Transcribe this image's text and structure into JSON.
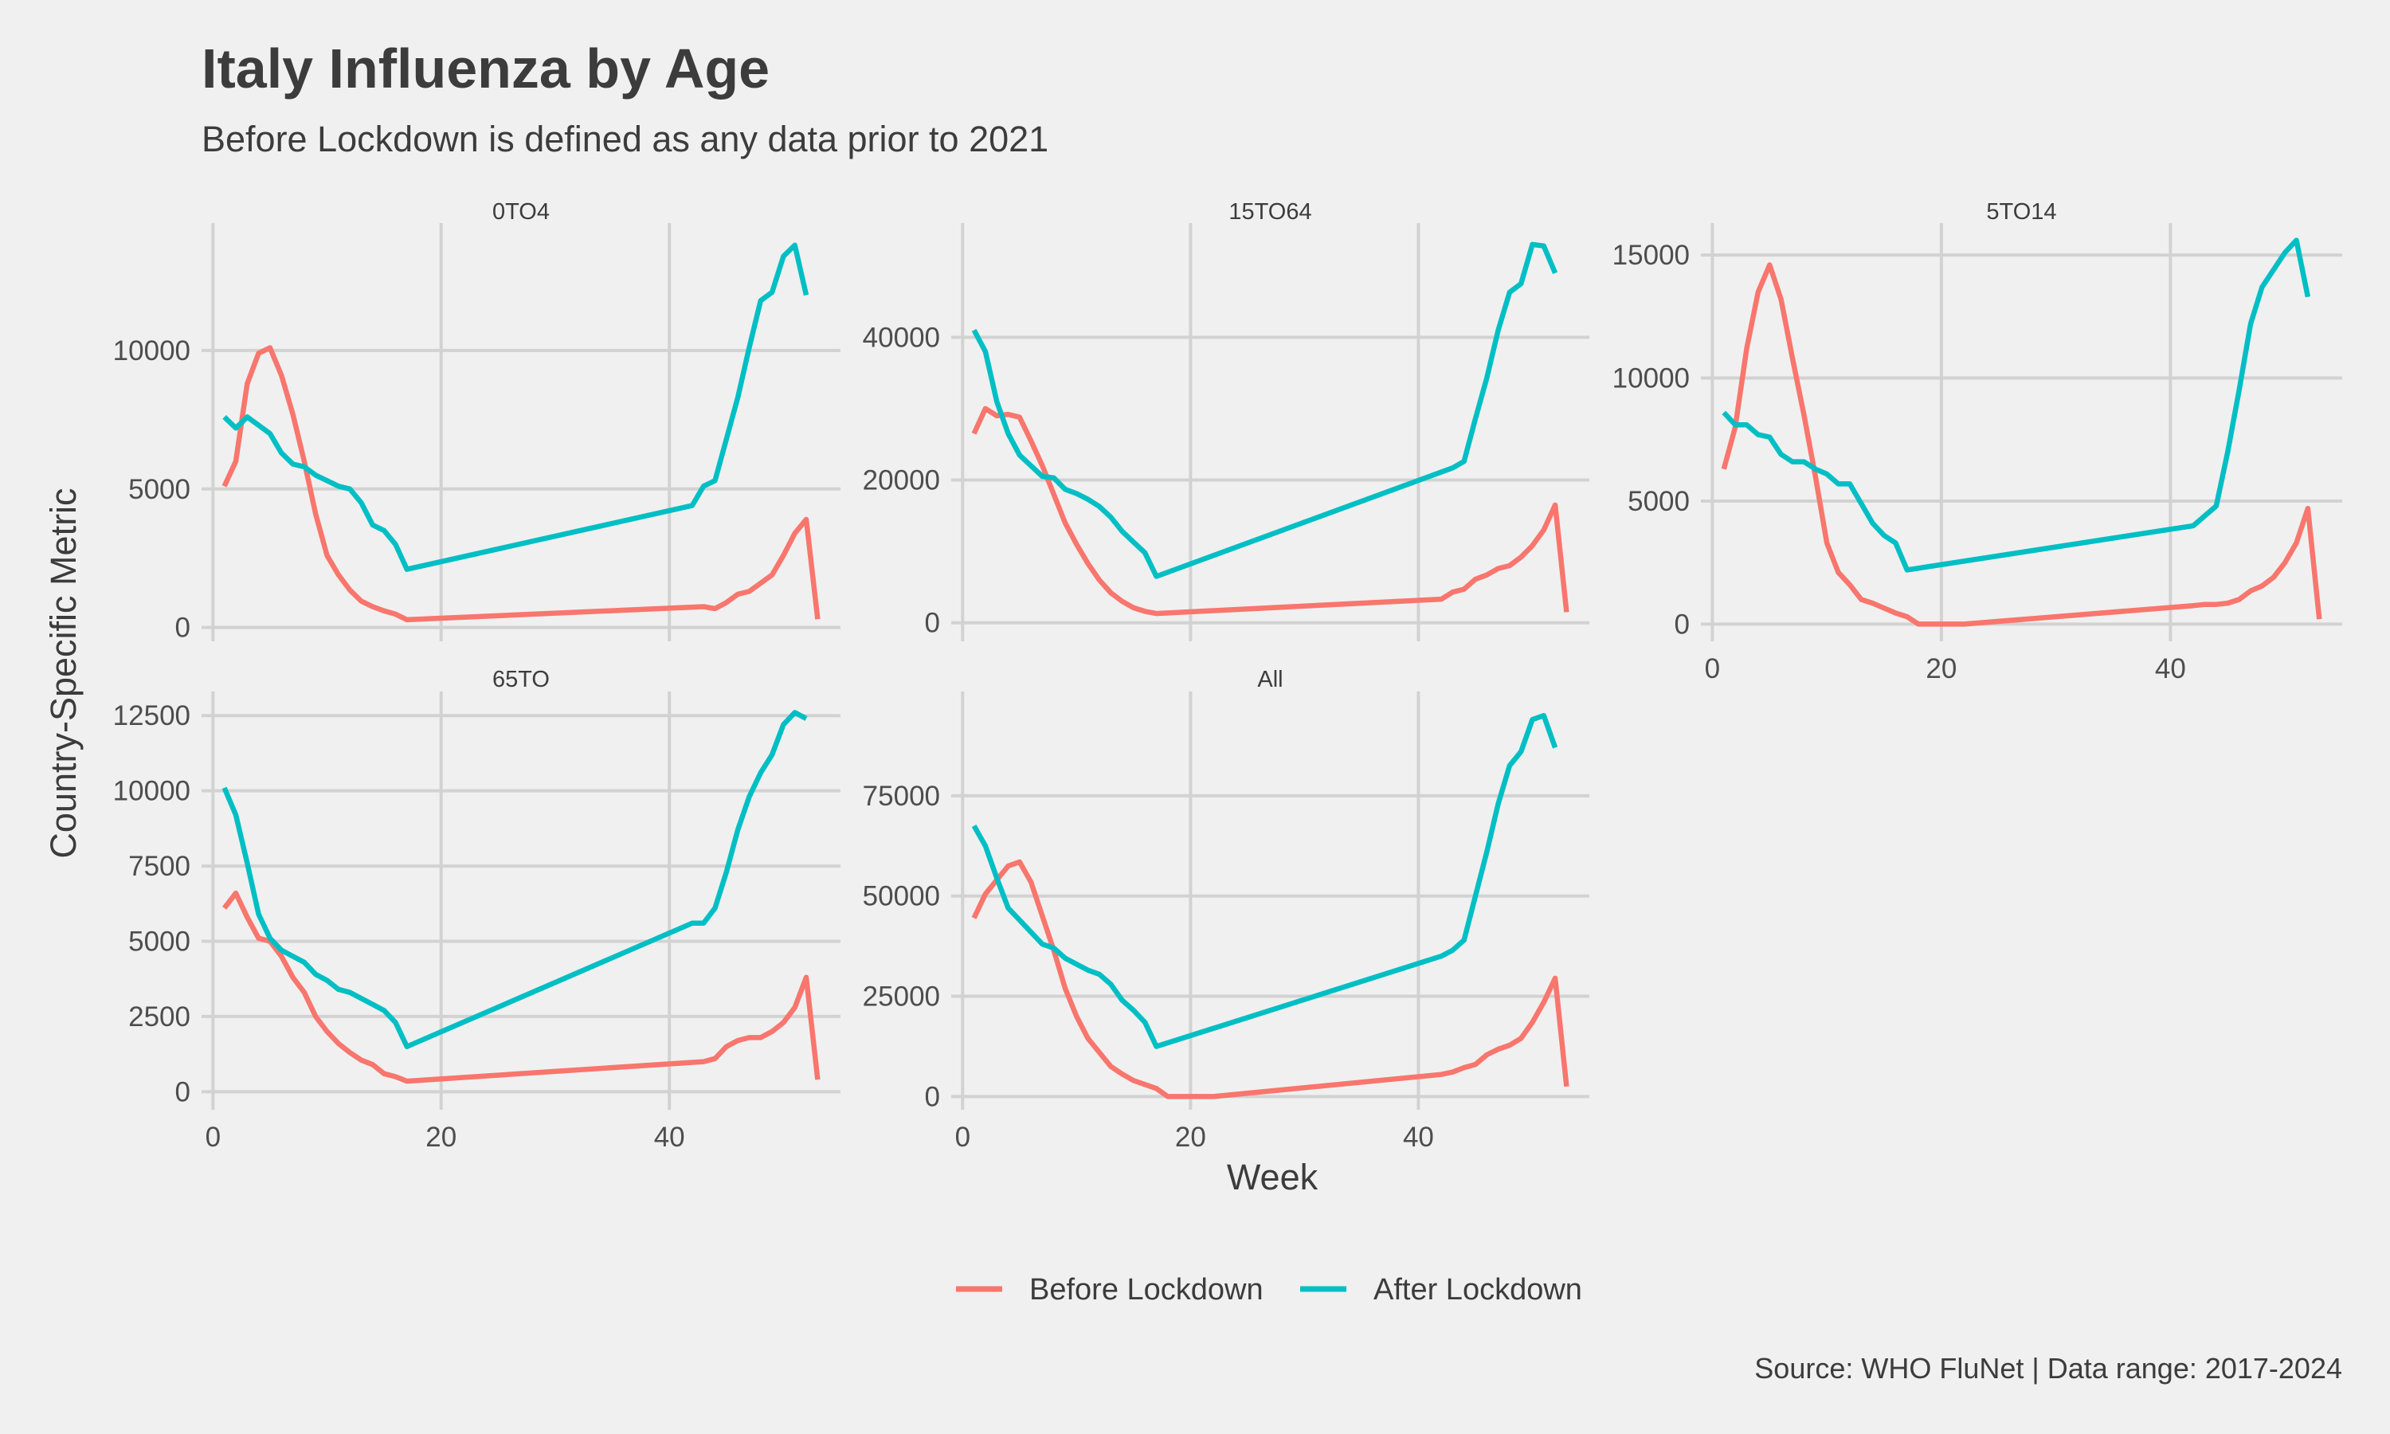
{
  "title": "Italy Influenza by Age",
  "subtitle": "Before Lockdown is defined as any data prior to 2021",
  "caption": "Source: WHO FluNet | Data range: 2017-2024",
  "xlabel": "Week",
  "ylabel": "Country-Specific Metric",
  "legend": [
    {
      "name": "Before Lockdown",
      "color": "#F8766D"
    },
    {
      "name": "After Lockdown",
      "color": "#00BFC4"
    }
  ],
  "chart_data": {
    "type": "line",
    "facet": "age_group",
    "xlabel": "Week",
    "ylabel": "Country-Specific Metric",
    "legend_position": "bottom",
    "grid": true,
    "panels": [
      {
        "name": "0TO4",
        "xlim": [
          -1,
          55
        ],
        "ylim": [
          -500,
          14600
        ],
        "xticks": [
          0,
          20,
          40
        ],
        "xtick_labels_shown": false,
        "yticks": [
          0,
          5000,
          10000
        ],
        "ytick_labels": [
          "0",
          "5000",
          "10000"
        ],
        "series": [
          {
            "name": "Before Lockdown",
            "color": "#F8766D",
            "x": [
              1,
              2,
              3,
              4,
              5,
              6,
              7,
              8,
              9,
              10,
              11,
              12,
              13,
              14,
              15,
              16,
              17,
              43,
              44,
              45,
              46,
              47,
              48,
              49,
              50,
              51,
              52,
              53
            ],
            "y": [
              5100,
              6000,
              8800,
              9900,
              10100,
              9100,
              7700,
              6000,
              4100,
              2600,
              1900,
              1350,
              950,
              750,
              600,
              480,
              280,
              750,
              680,
              900,
              1200,
              1300,
              1600,
              1900,
              2600,
              3400,
              3900,
              300
            ]
          },
          {
            "name": "After Lockdown",
            "color": "#00BFC4",
            "x": [
              1,
              2,
              3,
              4,
              5,
              6,
              7,
              8,
              9,
              10,
              11,
              12,
              13,
              14,
              15,
              16,
              17,
              42,
              43,
              44,
              45,
              46,
              47,
              48,
              49,
              50,
              51,
              52
            ],
            "y": [
              7600,
              7200,
              7600,
              7300,
              7000,
              6300,
              5900,
              5800,
              5500,
              5300,
              5100,
              5000,
              4500,
              3700,
              3500,
              3000,
              2100,
              4400,
              5100,
              5300,
              6800,
              8300,
              10100,
              11800,
              12100,
              13400,
              13800,
              12000
            ]
          }
        ]
      },
      {
        "name": "15TO64",
        "xlim": [
          -1,
          55
        ],
        "ylim": [
          -2600,
          56000
        ],
        "xticks": [
          0,
          20,
          40
        ],
        "xtick_labels_shown": false,
        "yticks": [
          0,
          20000,
          40000
        ],
        "ytick_labels": [
          "0",
          "20000",
          "40000"
        ],
        "series": [
          {
            "name": "Before Lockdown",
            "color": "#F8766D",
            "x": [
              1,
              2,
              3,
              4,
              5,
              6,
              7,
              8,
              9,
              10,
              11,
              12,
              13,
              14,
              15,
              16,
              17,
              42,
              43,
              44,
              45,
              46,
              47,
              48,
              49,
              50,
              51,
              52,
              53
            ],
            "y": [
              26500,
              30000,
              29000,
              29200,
              28800,
              25500,
              22000,
              18000,
              14000,
              11000,
              8300,
              6000,
              4200,
              3000,
              2100,
              1600,
              1300,
              3300,
              4300,
              4700,
              6100,
              6700,
              7600,
              8000,
              9200,
              10800,
              13000,
              16500,
              1500
            ]
          },
          {
            "name": "After Lockdown",
            "color": "#00BFC4",
            "x": [
              1,
              2,
              3,
              4,
              5,
              6,
              7,
              8,
              9,
              10,
              11,
              12,
              13,
              14,
              15,
              16,
              17,
              43,
              44,
              45,
              46,
              47,
              48,
              49,
              50,
              51,
              52
            ],
            "y": [
              41000,
              38000,
              31000,
              26500,
              23500,
              22000,
              20500,
              20300,
              18700,
              18100,
              17300,
              16300,
              14800,
              12800,
              11300,
              9800,
              6500,
              21700,
              22600,
              28600,
              34300,
              41000,
              46300,
              47500,
              53000,
              52800,
              49000
            ]
          }
        ]
      },
      {
        "name": "5TO14",
        "xlim": [
          -1,
          55
        ],
        "ylim": [
          -700,
          16300
        ],
        "xticks": [
          0,
          20,
          40
        ],
        "xtick_labels_shown": true,
        "yticks": [
          0,
          5000,
          10000,
          15000
        ],
        "ytick_labels": [
          "0",
          "5000",
          "10000",
          "15000"
        ],
        "series": [
          {
            "name": "Before Lockdown",
            "color": "#F8766D",
            "x": [
              1,
              2,
              3,
              4,
              5,
              6,
              7,
              8,
              9,
              10,
              11,
              12,
              13,
              14,
              15,
              16,
              17,
              18,
              19,
              20,
              21,
              22,
              42,
              43,
              44,
              45,
              46,
              47,
              48,
              49,
              50,
              51,
              52,
              53
            ],
            "y": [
              6300,
              8000,
              11200,
              13500,
              14600,
              13200,
              10800,
              8500,
              6000,
              3300,
              2100,
              1600,
              1000,
              850,
              650,
              450,
              300,
              0,
              0,
              0,
              0,
              0,
              750,
              800,
              800,
              850,
              1000,
              1350,
              1550,
              1900,
              2500,
              3300,
              4700,
              200
            ]
          },
          {
            "name": "After Lockdown",
            "color": "#00BFC4",
            "x": [
              1,
              2,
              3,
              4,
              5,
              6,
              7,
              8,
              9,
              10,
              11,
              12,
              13,
              14,
              15,
              16,
              17,
              42,
              43,
              44,
              45,
              46,
              47,
              48,
              49,
              50,
              51,
              52
            ],
            "y": [
              8600,
              8100,
              8100,
              7700,
              7600,
              6900,
              6600,
              6600,
              6300,
              6100,
              5700,
              5700,
              4900,
              4100,
              3600,
              3300,
              2200,
              4000,
              4400,
              4800,
              7000,
              9500,
              12200,
              13700,
              14400,
              15100,
              15600,
              13300
            ]
          }
        ]
      },
      {
        "name": "65TO",
        "xlim": [
          -1,
          55
        ],
        "ylim": [
          -600,
          13300
        ],
        "xticks": [
          0,
          20,
          40
        ],
        "xtick_labels_shown": true,
        "yticks": [
          0,
          2500,
          5000,
          7500,
          10000,
          12500
        ],
        "ytick_labels": [
          "0",
          "2500",
          "5000",
          "7500",
          "10000",
          "12500"
        ],
        "series": [
          {
            "name": "Before Lockdown",
            "color": "#F8766D",
            "x": [
              1,
              2,
              3,
              4,
              5,
              6,
              7,
              8,
              9,
              10,
              11,
              12,
              13,
              14,
              15,
              16,
              17,
              43,
              44,
              45,
              46,
              47,
              48,
              49,
              50,
              51,
              52,
              53
            ],
            "y": [
              6100,
              6600,
              5800,
              5100,
              5000,
              4500,
              3800,
              3300,
              2500,
              2000,
              1600,
              1300,
              1050,
              900,
              600,
              500,
              350,
              1000,
              1100,
              1500,
              1700,
              1800,
              1800,
              2000,
              2300,
              2800,
              3800,
              400
            ]
          },
          {
            "name": "After Lockdown",
            "color": "#00BFC4",
            "x": [
              1,
              2,
              3,
              4,
              5,
              6,
              7,
              8,
              9,
              10,
              11,
              12,
              13,
              14,
              15,
              16,
              17,
              42,
              43,
              44,
              45,
              46,
              47,
              48,
              49,
              50,
              51,
              52
            ],
            "y": [
              10100,
              9200,
              7600,
              5900,
              5100,
              4700,
              4500,
              4300,
              3900,
              3700,
              3400,
              3300,
              3100,
              2900,
              2700,
              2300,
              1500,
              5600,
              5600,
              6100,
              7300,
              8700,
              9800,
              10600,
              11200,
              12200,
              12600,
              12400
            ]
          }
        ]
      },
      {
        "name": "All",
        "xlim": [
          -1,
          55
        ],
        "ylim": [
          -3300,
          101000
        ],
        "xticks": [
          0,
          20,
          40
        ],
        "xtick_labels_shown": true,
        "yticks": [
          0,
          25000,
          50000,
          75000
        ],
        "ytick_labels": [
          "0",
          "25000",
          "50000",
          "75000"
        ],
        "series": [
          {
            "name": "Before Lockdown",
            "color": "#F8766D",
            "x": [
              1,
              2,
              3,
              4,
              5,
              6,
              7,
              8,
              9,
              10,
              11,
              12,
              13,
              14,
              15,
              16,
              17,
              18,
              19,
              20,
              21,
              22,
              42,
              43,
              44,
              45,
              46,
              47,
              48,
              49,
              50,
              51,
              52,
              53
            ],
            "y": [
              44500,
              50500,
              54000,
              57500,
              58500,
              53500,
              45000,
              36500,
              27000,
              20000,
              14500,
              11000,
              7500,
              5600,
              4000,
              3000,
              2000,
              0,
              0,
              0,
              0,
              0,
              5500,
              6100,
              7200,
              8000,
              10400,
              11800,
              12800,
              14500,
              18500,
              23500,
              29500,
              2500
            ]
          },
          {
            "name": "After Lockdown",
            "color": "#00BFC4",
            "x": [
              1,
              2,
              3,
              4,
              5,
              6,
              7,
              8,
              9,
              10,
              11,
              12,
              13,
              14,
              15,
              16,
              17,
              42,
              43,
              44,
              45,
              46,
              47,
              48,
              49,
              50,
              51,
              52
            ],
            "y": [
              67500,
              62500,
              54500,
              47000,
              44000,
              41000,
              38000,
              37000,
              34500,
              33000,
              31500,
              30500,
              28000,
              24000,
              21500,
              18500,
              12500,
              35000,
              36500,
              39000,
              50000,
              61000,
              73000,
              82500,
              86000,
              94000,
              95000,
              87000
            ]
          }
        ]
      }
    ]
  }
}
